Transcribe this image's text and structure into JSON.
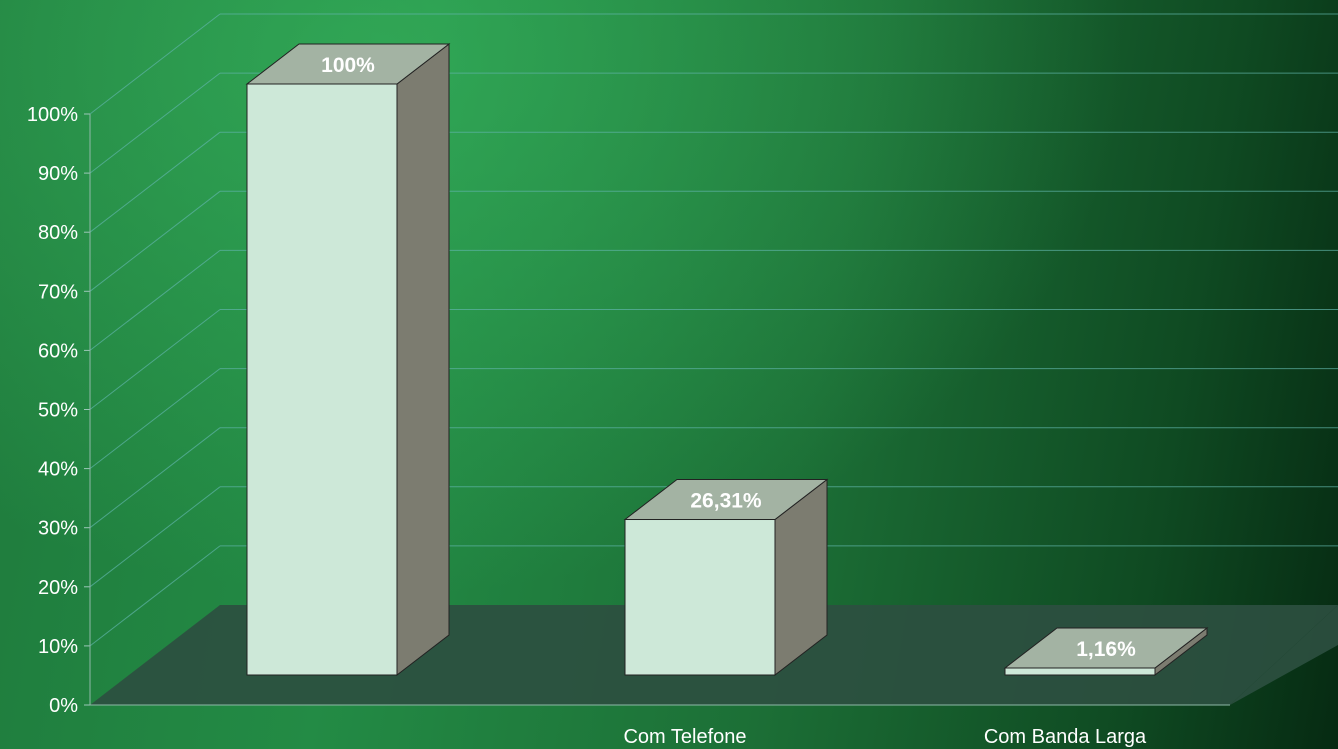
{
  "chart_data": {
    "type": "bar",
    "style": "3d-column",
    "title": "",
    "xlabel": "",
    "ylabel": "",
    "categories": [
      "",
      "Com Telefone",
      "Com Banda Larga"
    ],
    "values": [
      100,
      26.31,
      1.16
    ],
    "data_labels": [
      "100%",
      "26,31%",
      "1,16%"
    ],
    "ylim": [
      0,
      100
    ],
    "y_ticks": [
      "0%",
      "10%",
      "20%",
      "30%",
      "40%",
      "50%",
      "60%",
      "70%",
      "80%",
      "90%",
      "100%"
    ],
    "grid": true,
    "legend": "none",
    "colors": {
      "bar_front": "#cde8d8",
      "bar_top": "#a3b3a3",
      "bar_side": "#7c7c70",
      "floor": "#2c4f40",
      "gridline": "#5fb3a8",
      "text": "#ffffff"
    }
  }
}
